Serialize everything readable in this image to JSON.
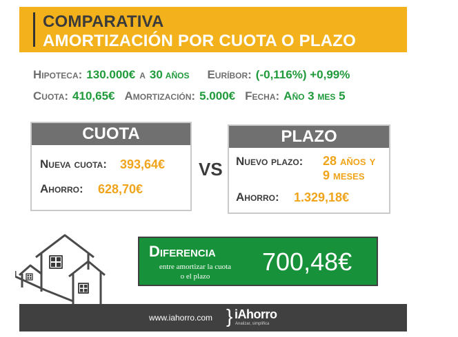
{
  "header": {
    "title_line1": "COMPARATIVA",
    "title_line2": "AMORTIZACIÓN POR CUOTA O PLAZO"
  },
  "info": {
    "hipoteca_label": "Hipoteca:",
    "hipoteca_value": "130.000€",
    "a_label": "a",
    "years_value": "30",
    "years_label": "años",
    "euribor_label": "Euríbor:",
    "euribor_value": "(-0,116%) +0,99%",
    "cuota_label": "Cuota:",
    "cuota_value": "410,65€",
    "amortizacion_label": "Amortización:",
    "amortizacion_value": "5.000€",
    "fecha_label": "Fecha:",
    "fecha_value": "Año 3 mes 5"
  },
  "cuota_box": {
    "title": "CUOTA",
    "nueva_cuota_label": "Nueva cuota:",
    "nueva_cuota_value": "393,64€",
    "ahorro_label": "Ahorro:",
    "ahorro_value": "628,70€"
  },
  "vs": "VS",
  "plazo_box": {
    "title": "PLAZO",
    "nuevo_plazo_label": "Nuevo plazo:",
    "nuevo_plazo_value_line1": "28 años y",
    "nuevo_plazo_value_line2": "9 meses",
    "ahorro_label": "Ahorro:",
    "ahorro_value": "1.329,18€"
  },
  "diferencia": {
    "title": "Diferencia",
    "subtitle_line1": "entre amortizar la cuota",
    "subtitle_line2": "o el plazo",
    "value": "700,48€"
  },
  "footer": {
    "url": "www.iahorro.com",
    "logo_name": "iAhorro",
    "logo_tagline": "Analizar, simplifica"
  },
  "colors": {
    "accent_yellow": "#f3b21b",
    "green": "#1f9a3a",
    "orange_value": "#f0a41a",
    "box_header_gray": "#707070",
    "footer_dark": "#404040"
  }
}
